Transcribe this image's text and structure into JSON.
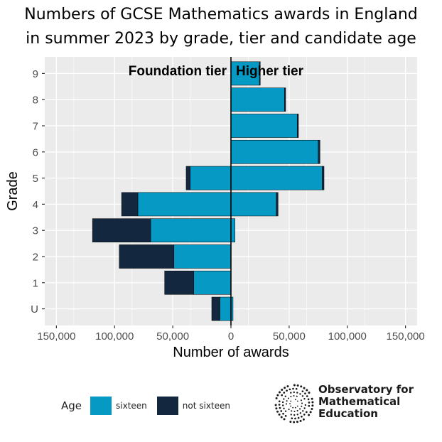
{
  "title_lines": [
    "Numbers of GCSE Mathematics awards in England",
    "in summer 2023 by grade, tier and candidate age"
  ],
  "colors": {
    "sixteen": "#0599C4",
    "not_sixteen": "#13283F",
    "panel": "#EBEBEB",
    "grid": "#FFFFFF",
    "axis_text": "#4D4D4D"
  },
  "chart_data": {
    "type": "bar",
    "orientation": "horizontal-diverging",
    "title": "Numbers of GCSE Mathematics awards in England in summer 2023 by grade, tier and candidate age",
    "xlabel": "Number of awards",
    "ylabel": "Grade",
    "xlim": [
      -160000,
      160000
    ],
    "x_ticks": [
      -150000,
      -100000,
      -50000,
      0,
      50000,
      100000,
      150000
    ],
    "x_tick_labels": [
      "150,000",
      "100,000",
      "50,000",
      "0",
      "50,000",
      "100,000",
      "150,000"
    ],
    "categories": [
      "U",
      "1",
      "2",
      "3",
      "4",
      "5",
      "6",
      "7",
      "8",
      "9"
    ],
    "panel_labels": {
      "left": "Foundation tier",
      "right": "Higher tier"
    },
    "series": [
      {
        "name": "sixteen",
        "tier": "Foundation",
        "values": [
          9500,
          32000,
          49000,
          69000,
          80000,
          35000,
          0,
          0,
          0,
          0
        ]
      },
      {
        "name": "not sixteen",
        "tier": "Foundation",
        "values": [
          7000,
          25000,
          47000,
          50000,
          14000,
          3500,
          0,
          0,
          0,
          0
        ]
      },
      {
        "name": "sixteen",
        "tier": "Higher",
        "values": [
          1800,
          0,
          0,
          3500,
          39000,
          78500,
          75000,
          57000,
          46000,
          24500
        ]
      },
      {
        "name": "not sixteen",
        "tier": "Higher",
        "values": [
          0,
          0,
          0,
          0,
          1500,
          1500,
          1500,
          1000,
          1000,
          700
        ]
      }
    ]
  },
  "legend": {
    "title": "Age",
    "items": [
      "sixteen",
      "not sixteen"
    ]
  },
  "logo": {
    "name_lines": [
      "Observatory for",
      "Mathematical",
      "Education"
    ],
    "icon": "spiral-dots-logo-icon"
  }
}
